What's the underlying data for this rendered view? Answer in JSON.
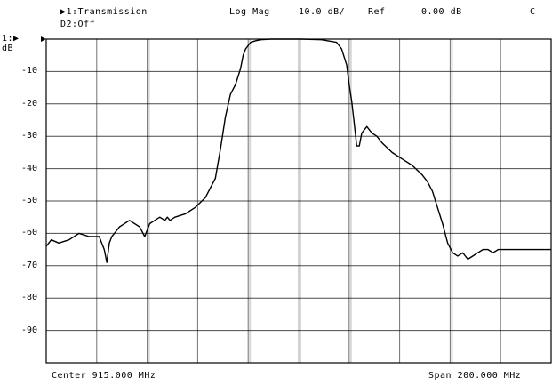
{
  "header": {
    "channel1": "▶1:Transmission",
    "format": "Log Mag",
    "scale": "10.0 dB/",
    "ref": "Ref",
    "ref_value": "0.00 dB",
    "cal_status": "C",
    "channel2": "D2:Off"
  },
  "ref_marker": "1:▶",
  "y_unit": "dB",
  "footer": {
    "center": "Center 915.000 MHz",
    "span": "Span 200.000 MHz"
  },
  "colors": {
    "background": "#ffffff",
    "trace": "#000000",
    "grid": "#000000"
  },
  "chart_data": {
    "type": "line",
    "xlabel": "",
    "ylabel": "dB",
    "xlim": [
      815,
      1015
    ],
    "ylim": [
      -100,
      0
    ],
    "grid": true,
    "y_ticks": [
      "-10",
      "-20",
      "-30",
      "-40",
      "-50",
      "-60",
      "-70",
      "-80",
      "-90"
    ],
    "series": [
      {
        "x": [
          815,
          817,
          820,
          824,
          828,
          832,
          836,
          838,
          839,
          840,
          841,
          842,
          844,
          848,
          852,
          854,
          855,
          856,
          858,
          860,
          862,
          863,
          864,
          866,
          870,
          874,
          878,
          882,
          884,
          886,
          888,
          890,
          892,
          893,
          894,
          896,
          898,
          900,
          904,
          910,
          916,
          924,
          930,
          932,
          934,
          935,
          936,
          937,
          938,
          939,
          940,
          942,
          944,
          946,
          948,
          952,
          956,
          960,
          964,
          966,
          968,
          970,
          972,
          974,
          976,
          978,
          980,
          982,
          984,
          986,
          988,
          990,
          992,
          994,
          996,
          998,
          1000,
          1005,
          1010,
          1015
        ],
        "y": [
          -64,
          -62,
          -63,
          -62,
          -60,
          -61,
          -61,
          -65,
          -69,
          -63,
          -61,
          -60,
          -58,
          -56,
          -58,
          -61,
          -59,
          -57,
          -56,
          -55,
          -56,
          -55,
          -56,
          -55,
          -54,
          -52,
          -49,
          -43,
          -34,
          -24,
          -17,
          -14,
          -9,
          -5,
          -3,
          -1,
          -0.5,
          -0.2,
          0,
          0,
          0,
          -0.2,
          -1,
          -3,
          -8,
          -14,
          -19,
          -26,
          -33,
          -33,
          -29,
          -27,
          -29,
          -30,
          -32,
          -35,
          -37,
          -39,
          -42,
          -44,
          -47,
          -52,
          -57,
          -63,
          -66,
          -67,
          -66,
          -68,
          -67,
          -66,
          -65,
          -65,
          -66,
          -65,
          -65,
          -65,
          -65,
          -65,
          -65,
          -65
        ]
      }
    ]
  }
}
